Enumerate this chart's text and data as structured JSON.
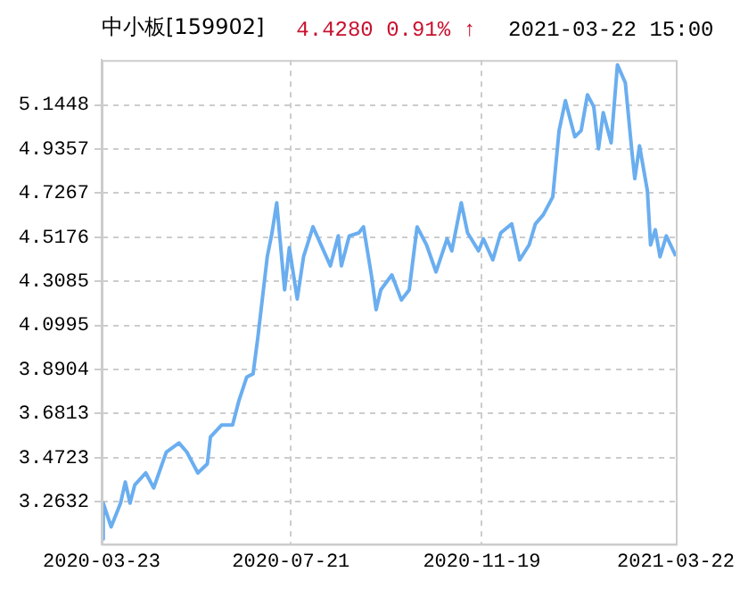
{
  "chart_data": {
    "type": "line",
    "title": "中小板[159902]",
    "subtitle": "4.4280 0.91% ↑",
    "annotations": [
      "2021-03-22 15:00"
    ],
    "x": [
      "2020-03-23",
      "2020-03-24",
      "2020-03-29",
      "2020-04-04",
      "2020-04-07",
      "2020-04-10",
      "2020-04-13",
      "2020-04-20",
      "2020-04-25",
      "2020-05-03",
      "2020-05-11",
      "2020-05-16",
      "2020-05-23",
      "2020-05-29",
      "2020-05-31",
      "2020-06-07",
      "2020-06-14",
      "2020-06-18",
      "2020-06-23",
      "2020-06-27",
      "2020-06-30",
      "2020-07-06",
      "2020-07-09",
      "2020-07-12",
      "2020-07-17",
      "2020-07-20",
      "2020-07-25",
      "2020-07-29",
      "2020-08-04",
      "2020-08-15",
      "2020-08-20",
      "2020-08-22",
      "2020-08-27",
      "2020-09-02",
      "2020-09-05",
      "2020-09-10",
      "2020-09-13",
      "2020-09-16",
      "2020-09-23",
      "2020-09-29",
      "2020-10-04",
      "2020-10-09",
      "2020-10-15",
      "2020-10-21",
      "2020-10-28",
      "2020-10-31",
      "2020-11-06",
      "2020-11-10",
      "2020-11-17",
      "2020-11-20",
      "2020-11-26",
      "2020-12-01",
      "2020-12-08",
      "2020-12-13",
      "2020-12-19",
      "2020-12-23",
      "2020-12-28",
      "2021-01-03",
      "2021-01-07",
      "2021-01-11",
      "2021-01-14",
      "2021-01-17",
      "2021-01-21",
      "2021-01-25",
      "2021-01-29",
      "2021-02-01",
      "2021-02-04",
      "2021-02-09",
      "2021-02-13",
      "2021-02-18",
      "2021-02-22",
      "2021-02-24",
      "2021-02-27",
      "2021-03-04",
      "2021-03-06",
      "2021-03-09",
      "2021-03-12",
      "2021-03-16",
      "2021-03-22"
    ],
    "series": [
      {
        "color": "#6aaef0",
        "values": [
          3.087,
          3.257,
          3.144,
          3.257,
          3.357,
          3.257,
          3.343,
          3.4,
          3.329,
          3.499,
          3.542,
          3.499,
          3.4,
          3.443,
          3.571,
          3.627,
          3.627,
          3.742,
          3.855,
          3.87,
          4.041,
          4.425,
          4.538,
          4.681,
          4.268,
          4.468,
          4.225,
          4.425,
          4.567,
          4.382,
          4.524,
          4.382,
          4.524,
          4.538,
          4.567,
          4.339,
          4.174,
          4.268,
          4.339,
          4.22,
          4.268,
          4.567,
          4.481,
          4.353,
          4.51,
          4.453,
          4.681,
          4.538,
          4.453,
          4.51,
          4.41,
          4.538,
          4.581,
          4.41,
          4.481,
          4.581,
          4.624,
          4.709,
          5.023,
          5.165,
          5.079,
          4.994,
          5.023,
          5.193,
          5.136,
          4.937,
          5.108,
          4.965,
          5.335,
          5.25,
          4.937,
          4.795,
          4.951,
          4.737,
          4.481,
          4.553,
          4.425,
          4.524,
          4.428
        ]
      }
    ],
    "xlim": [
      "2020-03-23",
      "2021-03-22"
    ],
    "xticks": [
      "2020-03-23",
      "2020-07-21",
      "2020-11-19",
      "2021-03-22"
    ],
    "ylim": [
      3.063,
      5.358
    ],
    "yticks": [
      {
        "value": 3.2632,
        "label": "3.2632"
      },
      {
        "value": 3.4723,
        "label": "3.4723"
      },
      {
        "value": 3.6813,
        "label": "3.6813"
      },
      {
        "value": 3.8904,
        "label": "3.8904"
      },
      {
        "value": 4.0995,
        "label": "4.0995"
      },
      {
        "value": 4.3085,
        "label": "4.3085"
      },
      {
        "value": 4.5176,
        "label": "4.5176"
      },
      {
        "value": 4.7267,
        "label": "4.7267"
      },
      {
        "value": 4.9357,
        "label": "4.9357"
      },
      {
        "value": 5.1448,
        "label": "5.1448"
      }
    ],
    "grid": true,
    "legend": false,
    "marker": "none",
    "line_style": "solid"
  }
}
